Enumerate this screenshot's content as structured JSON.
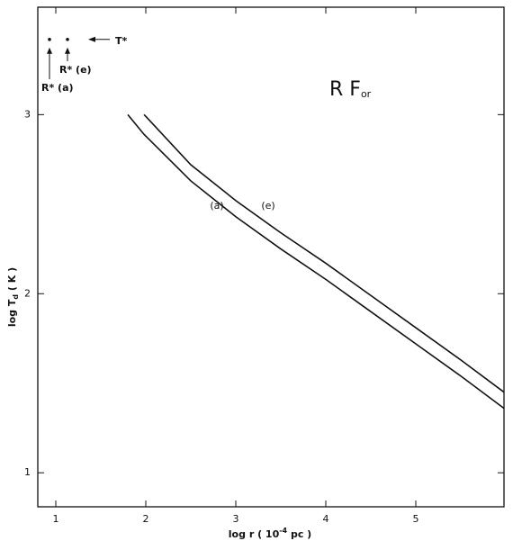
{
  "chart_data": {
    "type": "line",
    "title": {
      "main": "R F",
      "sub": "or"
    },
    "x_label": {
      "before": "log r ( 10",
      "sup": "-4",
      "after": " pc )"
    },
    "y_label": {
      "before": "log T",
      "sub": "d",
      "after": " ( K )"
    },
    "x": [
      1.8,
      1.98,
      2.0,
      2.5,
      3.0,
      3.5,
      4.0,
      4.5,
      5.0,
      5.5,
      5.98
    ],
    "series": [
      {
        "name": "(a)",
        "color": "#111111",
        "values": [
          3.0,
          2.89,
          2.88,
          2.63,
          2.43,
          2.25,
          2.08,
          1.9,
          1.72,
          1.54,
          1.36
        ]
      },
      {
        "name": "(e)",
        "color": "#111111",
        "values": [
          null,
          3.0,
          2.99,
          2.72,
          2.52,
          2.34,
          2.17,
          1.99,
          1.81,
          1.63,
          1.45
        ]
      }
    ],
    "points": [
      {
        "label": "R* (a)",
        "x": 0.93,
        "y": 3.42
      },
      {
        "label": "R* (e)",
        "x": 1.13,
        "y": 3.42
      }
    ],
    "arrow_label": "T*",
    "xlim": [
      0.8,
      5.98
    ],
    "ylim": [
      0.81,
      3.6
    ],
    "xticks": [
      1,
      2,
      3,
      4,
      5
    ],
    "yticks": [
      1,
      2,
      3
    ]
  }
}
